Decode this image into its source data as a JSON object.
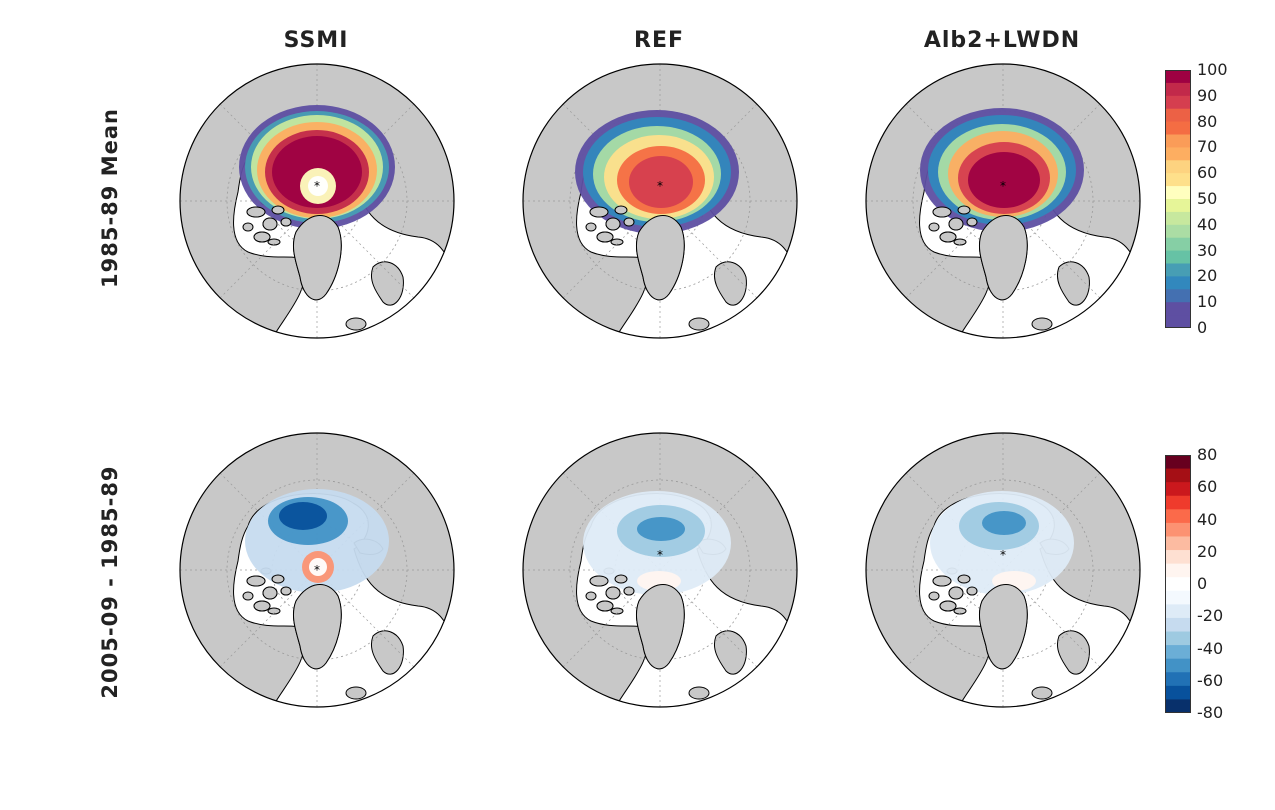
{
  "columns": [
    "SSMI",
    "REF",
    "Alb2+LWDN"
  ],
  "rows": [
    "1985-89 Mean",
    "2005-09 - 1985-89"
  ],
  "colorbar_mean": {
    "ticks": [
      "100",
      "90",
      "80",
      "70",
      "60",
      "50",
      "40",
      "30",
      "20",
      "10",
      "0"
    ],
    "colors": [
      "#9e0142",
      "#c2294a",
      "#d53e4f",
      "#ec6145",
      "#f46d43",
      "#fa9c58",
      "#fdae61",
      "#fdd380",
      "#fee08b",
      "#ffffbf",
      "#e6f598",
      "#c7e89e",
      "#abdda4",
      "#86cfa5",
      "#66c2a5",
      "#479eb4",
      "#3288bd",
      "#4470b1",
      "#5e4fa2",
      "#5e4fa2"
    ]
  },
  "colorbar_diff": {
    "ticks": [
      "80",
      "60",
      "40",
      "20",
      "0",
      "-20",
      "-40",
      "-60",
      "-80"
    ],
    "colors": [
      "#67001f",
      "#a50f15",
      "#cb181d",
      "#ef3b2c",
      "#fb6a4a",
      "#fc9272",
      "#fcbba1",
      "#fee0d2",
      "#fff5f0",
      "#ffffff",
      "#f4f9fe",
      "#deebf7",
      "#c6dbef",
      "#9ecae1",
      "#6baed6",
      "#4292c6",
      "#2171b5",
      "#08519c",
      "#08306b"
    ]
  },
  "map_style": {
    "land": "#c8c8c8",
    "ocean": "#ffffff",
    "coast": "#000000",
    "grid": "#9a9a9a"
  }
}
